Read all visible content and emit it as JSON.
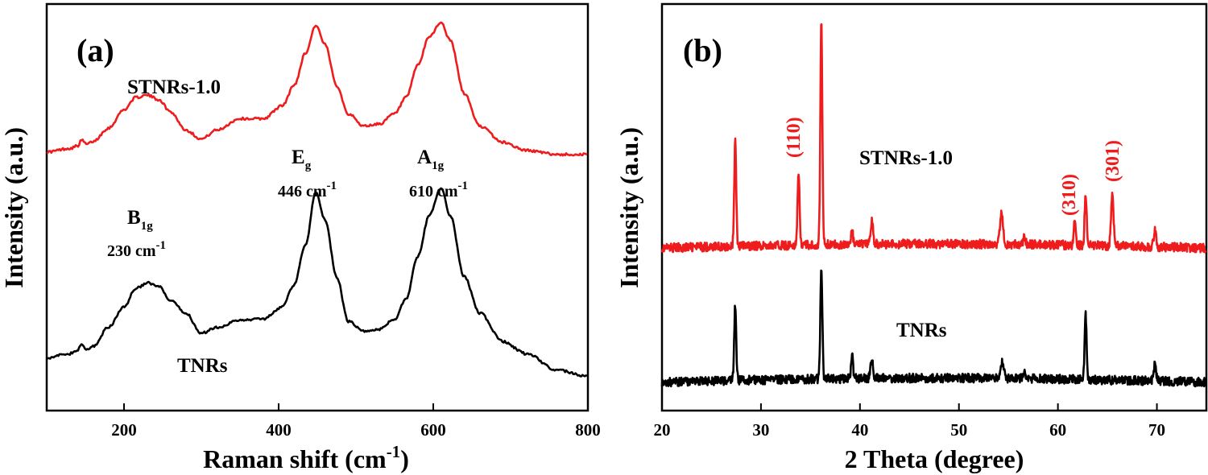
{
  "colors": {
    "red": "#ee1c1c",
    "black": "#000000"
  },
  "chart_data": [
    {
      "type": "line",
      "panel_label": "(a)",
      "xlabel": "Raman shift (cm",
      "xlabel_sup": "-1",
      "xlabel_tail": ")",
      "ylabel": "Intensity (a.u.)",
      "xlim": [
        100,
        800
      ],
      "ylim": [
        0,
        1.0
      ],
      "xticks": [
        "200",
        "400",
        "600",
        "800"
      ],
      "xtick_values": [
        200,
        400,
        600,
        800
      ],
      "peaks": [
        {
          "main": "B",
          "sub": "1g",
          "x": 230,
          "wavenumber": "230 cm",
          "unit_sup": "-1"
        },
        {
          "main": "E",
          "sub": "g",
          "x": 446,
          "wavenumber": "446 cm",
          "unit_sup": "-1"
        },
        {
          "main": "A",
          "sub": "1g",
          "x": 610,
          "wavenumber": "610 cm",
          "unit_sup": "-1"
        }
      ],
      "series": [
        {
          "name": "STNRs-1.0",
          "color": "#ee1c1c",
          "x": [
            100,
            130,
            140,
            145,
            152,
            160,
            180,
            200,
            215,
            230,
            245,
            260,
            280,
            300,
            320,
            350,
            380,
            405,
            420,
            435,
            448,
            460,
            475,
            490,
            510,
            530,
            550,
            565,
            580,
            595,
            610,
            622,
            640,
            660,
            690,
            720,
            760,
            800
          ],
          "y": [
            0.636,
            0.645,
            0.651,
            0.665,
            0.655,
            0.662,
            0.695,
            0.74,
            0.77,
            0.776,
            0.765,
            0.735,
            0.69,
            0.668,
            0.69,
            0.718,
            0.718,
            0.75,
            0.8,
            0.88,
            0.948,
            0.9,
            0.8,
            0.73,
            0.7,
            0.705,
            0.73,
            0.77,
            0.85,
            0.92,
            0.955,
            0.91,
            0.78,
            0.7,
            0.66,
            0.64,
            0.63,
            0.63
          ]
        },
        {
          "name": "TNRs",
          "color": "#000000",
          "x": [
            100,
            130,
            140,
            145,
            152,
            160,
            180,
            200,
            215,
            230,
            245,
            260,
            280,
            300,
            320,
            350,
            380,
            405,
            420,
            435,
            448,
            460,
            475,
            490,
            510,
            530,
            550,
            565,
            580,
            595,
            610,
            622,
            640,
            660,
            690,
            720,
            760,
            800
          ],
          "y": [
            0.13,
            0.14,
            0.148,
            0.162,
            0.15,
            0.158,
            0.205,
            0.255,
            0.3,
            0.314,
            0.305,
            0.27,
            0.24,
            0.19,
            0.205,
            0.222,
            0.226,
            0.255,
            0.31,
            0.41,
            0.537,
            0.47,
            0.33,
            0.22,
            0.195,
            0.2,
            0.225,
            0.275,
            0.38,
            0.48,
            0.548,
            0.48,
            0.33,
            0.24,
            0.17,
            0.14,
            0.1,
            0.085
          ]
        }
      ]
    },
    {
      "type": "line",
      "panel_label": "(b)",
      "xlabel": "2 Theta (degree)",
      "ylabel": "Intensity (a.u.)",
      "xlim": [
        20,
        75
      ],
      "ylim": [
        0,
        1.0
      ],
      "xticks": [
        "20",
        "30",
        "40",
        "50",
        "60",
        "70"
      ],
      "xtick_values": [
        20,
        30,
        40,
        50,
        60,
        70
      ],
      "hkl_labels": [
        {
          "text": "(110)",
          "x": 33.7
        },
        {
          "text": "(310)",
          "x": 61.5
        },
        {
          "text": "(301)",
          "x": 65.5
        }
      ],
      "series": [
        {
          "name": "STNRs-1.0",
          "color": "#ee1c1c",
          "baseline": [
            0.4,
            0.41
          ],
          "peaks": [
            [
              27.4,
              0.26,
              0.1
            ],
            [
              33.8,
              0.175,
              0.1
            ],
            [
              36.1,
              0.55,
              0.1
            ],
            [
              39.2,
              0.035,
              0.09
            ],
            [
              41.2,
              0.06,
              0.12
            ],
            [
              54.3,
              0.075,
              0.16
            ],
            [
              56.6,
              0.02,
              0.12
            ],
            [
              61.7,
              0.06,
              0.1
            ],
            [
              62.8,
              0.13,
              0.1
            ],
            [
              65.5,
              0.125,
              0.12
            ],
            [
              69.8,
              0.04,
              0.12
            ]
          ]
        },
        {
          "name": "TNRs",
          "color": "#000000",
          "baseline": [
            0.07,
            0.08
          ],
          "peaks": [
            [
              27.4,
              0.188,
              0.1
            ],
            [
              36.1,
              0.28,
              0.1
            ],
            [
              39.2,
              0.06,
              0.1
            ],
            [
              41.2,
              0.045,
              0.12
            ],
            [
              54.4,
              0.04,
              0.16
            ],
            [
              56.6,
              0.012,
              0.12
            ],
            [
              62.8,
              0.16,
              0.1
            ],
            [
              69.8,
              0.04,
              0.12
            ]
          ]
        }
      ]
    }
  ]
}
